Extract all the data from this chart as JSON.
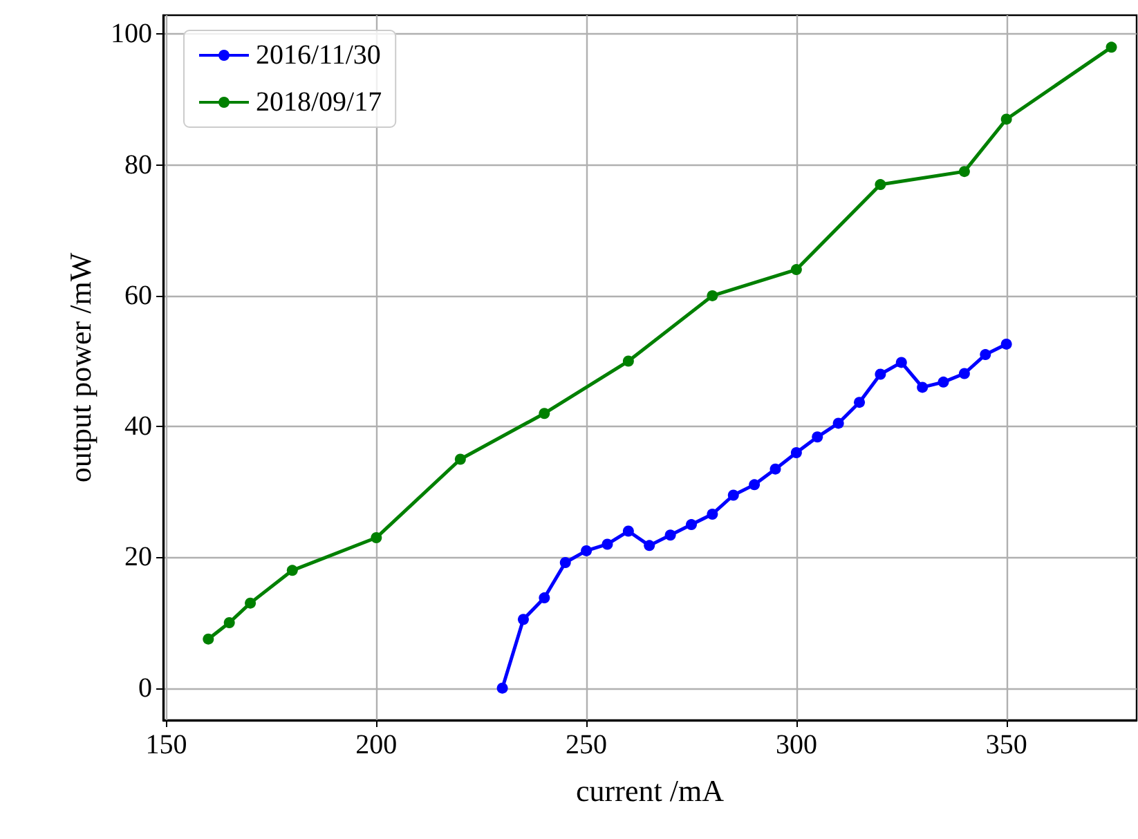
{
  "chart_data": {
    "type": "line",
    "xlabel": "current /mA",
    "ylabel": "output power /mW",
    "xlim": [
      149.25,
      381
    ],
    "ylim": [
      -4.9,
      102.9
    ],
    "xticks": [
      150,
      200,
      250,
      300,
      350
    ],
    "yticks": [
      0,
      20,
      40,
      60,
      80,
      100
    ],
    "grid": true,
    "legend": "top left",
    "marker": "circle",
    "line_style": "solid",
    "series": [
      {
        "name": "2016/11/30",
        "color": "#0000ff",
        "x": [
          230,
          235,
          240,
          245,
          250,
          255,
          260,
          265,
          270,
          275,
          280,
          285,
          290,
          295,
          300,
          305,
          310,
          315,
          320,
          325,
          330,
          335,
          340,
          345,
          350
        ],
        "values": [
          0,
          10.5,
          13.8,
          19.2,
          21,
          22,
          24,
          21.8,
          23.4,
          25,
          26.6,
          29.5,
          31.1,
          33.5,
          36,
          38.4,
          40.5,
          43.7,
          48,
          49.8,
          46,
          46.8,
          48.1,
          51,
          52.6
        ]
      },
      {
        "name": "2018/09/17",
        "color": "#008000",
        "x": [
          160,
          165,
          170,
          180,
          200,
          220,
          240,
          260,
          280,
          300,
          320,
          340,
          350,
          375
        ],
        "values": [
          7.5,
          10,
          13,
          18,
          23,
          35,
          42,
          50,
          60,
          64,
          77,
          79,
          87,
          98
        ]
      }
    ]
  }
}
